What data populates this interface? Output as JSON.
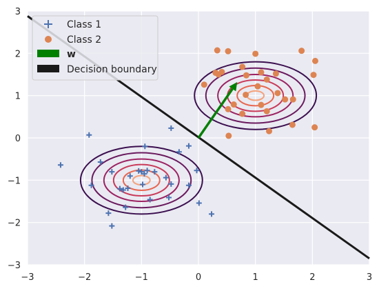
{
  "chart_data": {
    "type": "scatter",
    "xlim": [
      -3,
      3
    ],
    "ylim": [
      -3,
      3
    ],
    "x_ticks": [
      -3,
      -2,
      -1,
      0,
      1,
      2,
      3
    ],
    "y_ticks": [
      -3,
      -2,
      -1,
      0,
      1,
      2,
      3
    ],
    "x_tick_labels": [
      "−3",
      "−2",
      "−1",
      "0",
      "1",
      "2",
      "3"
    ],
    "y_tick_labels": [
      "−3",
      "−2",
      "−1",
      "0",
      "1",
      "2",
      "3"
    ],
    "grid": true,
    "legend_position": "top-left",
    "colors": {
      "background": "#eaeaf2",
      "grid": "#ffffff",
      "class1": "#4c72b0",
      "class2": "#dd8452",
      "arrow": "#008000",
      "boundary": "#1a1a1a",
      "contours": [
        "#3b0f4f",
        "#6a1a5e",
        "#9c2262",
        "#c93a59",
        "#e8664f",
        "#f4a27b"
      ]
    },
    "legend": [
      {
        "label": "Class 1",
        "marker": "plus",
        "color": "#4c72b0"
      },
      {
        "label": "Class 2",
        "marker": "circle",
        "color": "#dd8452"
      },
      {
        "label": "w",
        "marker": "patch",
        "color": "#008000"
      },
      {
        "label": "Decision boundary",
        "marker": "patch",
        "color": "#1a1a1a"
      }
    ],
    "series": [
      {
        "name": "Class 1",
        "marker": "plus",
        "points": [
          [
            -2.42,
            -0.64
          ],
          [
            -1.92,
            0.07
          ],
          [
            -1.88,
            -1.12
          ],
          [
            -1.72,
            -0.57
          ],
          [
            -1.58,
            -1.78
          ],
          [
            -1.52,
            -2.08
          ],
          [
            -1.52,
            -0.8
          ],
          [
            -1.38,
            -1.2
          ],
          [
            -1.32,
            -1.23
          ],
          [
            -1.28,
            -1.64
          ],
          [
            -1.24,
            -1.19
          ],
          [
            -1.2,
            -0.9
          ],
          [
            -1.05,
            -0.78
          ],
          [
            -1.0,
            -0.8
          ],
          [
            -0.98,
            -1.1
          ],
          [
            -0.95,
            -0.85
          ],
          [
            -0.94,
            -0.2
          ],
          [
            -0.9,
            -0.77
          ],
          [
            -0.85,
            -1.46
          ],
          [
            -0.77,
            -0.8
          ],
          [
            -0.57,
            -0.94
          ],
          [
            -0.52,
            -1.41
          ],
          [
            -0.48,
            -1.09
          ],
          [
            -0.48,
            0.23
          ],
          [
            -0.34,
            -0.33
          ],
          [
            -0.17,
            -0.19
          ],
          [
            -0.17,
            -1.12
          ],
          [
            -0.03,
            -0.77
          ],
          [
            0.01,
            -1.54
          ],
          [
            0.23,
            -1.8
          ]
        ]
      },
      {
        "name": "Class 2",
        "marker": "circle",
        "points": [
          [
            0.1,
            1.26
          ],
          [
            0.3,
            1.54
          ],
          [
            0.33,
            2.07
          ],
          [
            0.35,
            1.5
          ],
          [
            0.41,
            1.56
          ],
          [
            0.52,
            2.05
          ],
          [
            0.53,
            0.05
          ],
          [
            0.52,
            0.68
          ],
          [
            0.62,
            0.79
          ],
          [
            0.77,
            0.57
          ],
          [
            0.77,
            1.68
          ],
          [
            0.83,
            1.02
          ],
          [
            0.84,
            1.48
          ],
          [
            1.0,
            1.99
          ],
          [
            1.04,
            1.22
          ],
          [
            1.1,
            0.78
          ],
          [
            1.1,
            1.55
          ],
          [
            1.2,
            1.38
          ],
          [
            1.2,
            0.63
          ],
          [
            1.24,
            0.16
          ],
          [
            1.36,
            1.52
          ],
          [
            1.39,
            1.06
          ],
          [
            1.52,
            0.91
          ],
          [
            1.65,
            0.31
          ],
          [
            1.66,
            0.91
          ],
          [
            1.81,
            2.06
          ],
          [
            2.02,
            1.49
          ],
          [
            2.04,
            0.25
          ],
          [
            2.05,
            1.82
          ]
        ]
      }
    ],
    "contours": [
      {
        "center": [
          -1,
          -1
        ],
        "rx": [
          1.07,
          0.87,
          0.66,
          0.49,
          0.32,
          0.15
        ],
        "ry": [
          0.8,
          0.65,
          0.5,
          0.37,
          0.24,
          0.11
        ]
      },
      {
        "center": [
          1,
          1
        ],
        "rx": [
          1.07,
          0.87,
          0.66,
          0.49,
          0.32,
          0.15
        ],
        "ry": [
          0.8,
          0.65,
          0.5,
          0.37,
          0.24,
          0.11
        ]
      }
    ],
    "w_vector": {
      "from": [
        0,
        0
      ],
      "to": [
        0.68,
        1.32
      ]
    },
    "decision_boundary": {
      "from": [
        -3,
        2.88
      ],
      "to": [
        3,
        -2.85
      ]
    }
  }
}
